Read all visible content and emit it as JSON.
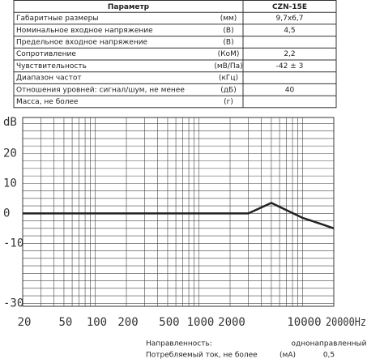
{
  "table": {
    "header": [
      "Параметр",
      "CZN-15E"
    ],
    "rows": [
      [
        "Габаритные размеры",
        "(мм)",
        "9,7x6,7"
      ],
      [
        "Номинальное входное напряжение",
        "(В)",
        "4,5"
      ],
      [
        "Предельное входное напряжение",
        "(В)",
        null
      ],
      [
        "Сопротивление",
        "(КоМ)",
        "2,2"
      ],
      [
        "Чувствительность",
        "(мВ/Па)",
        "-42 ± 3"
      ],
      [
        "Диапазон частот",
        "(кГц)",
        null
      ],
      [
        "Отношения уровней: сигнал/шум, не менее",
        "(дБ)",
        "40"
      ],
      [
        "Масса, не более",
        "(г)",
        null
      ]
    ]
  },
  "chart_data": {
    "type": "line",
    "y_label": "dB",
    "x_log": true,
    "xlim": [
      20,
      20000
    ],
    "ylim": [
      -31,
      32
    ],
    "xticks": [
      20,
      50,
      100,
      200,
      500,
      1000,
      2000,
      10000,
      {
        "value": 20000,
        "label": "20000Hz"
      }
    ],
    "yticks": [
      20,
      10,
      0,
      -10,
      -30
    ],
    "xgrid": [
      20,
      30,
      40,
      50,
      60,
      70,
      80,
      90,
      100,
      200,
      300,
      400,
      500,
      600,
      700,
      800,
      900,
      1000,
      2000,
      3000,
      4000,
      5000,
      6000,
      7000,
      8000,
      9000,
      10000,
      20000
    ],
    "ygrid": [
      -30,
      -27.5,
      -25,
      -22.5,
      -20,
      -17.5,
      -15,
      -12.5,
      -10,
      -7.5,
      -5,
      -2.5,
      0,
      2.5,
      5,
      7.5,
      10,
      12.5,
      15,
      17.5,
      20,
      22.5,
      25,
      27.5,
      30
    ],
    "series": [
      {
        "color": "#222222",
        "x": [
          20,
          3000,
          5000,
          10000,
          15000,
          20000
        ],
        "values": [
          0,
          0,
          3.5,
          -1.5,
          -3.5,
          -5
        ]
      }
    ]
  },
  "specs": [
    [
      "Направленность:",
      null,
      "однонаправленный"
    ],
    [
      "Потребляемый ток, не более",
      "(мА)",
      "0,5"
    ]
  ]
}
